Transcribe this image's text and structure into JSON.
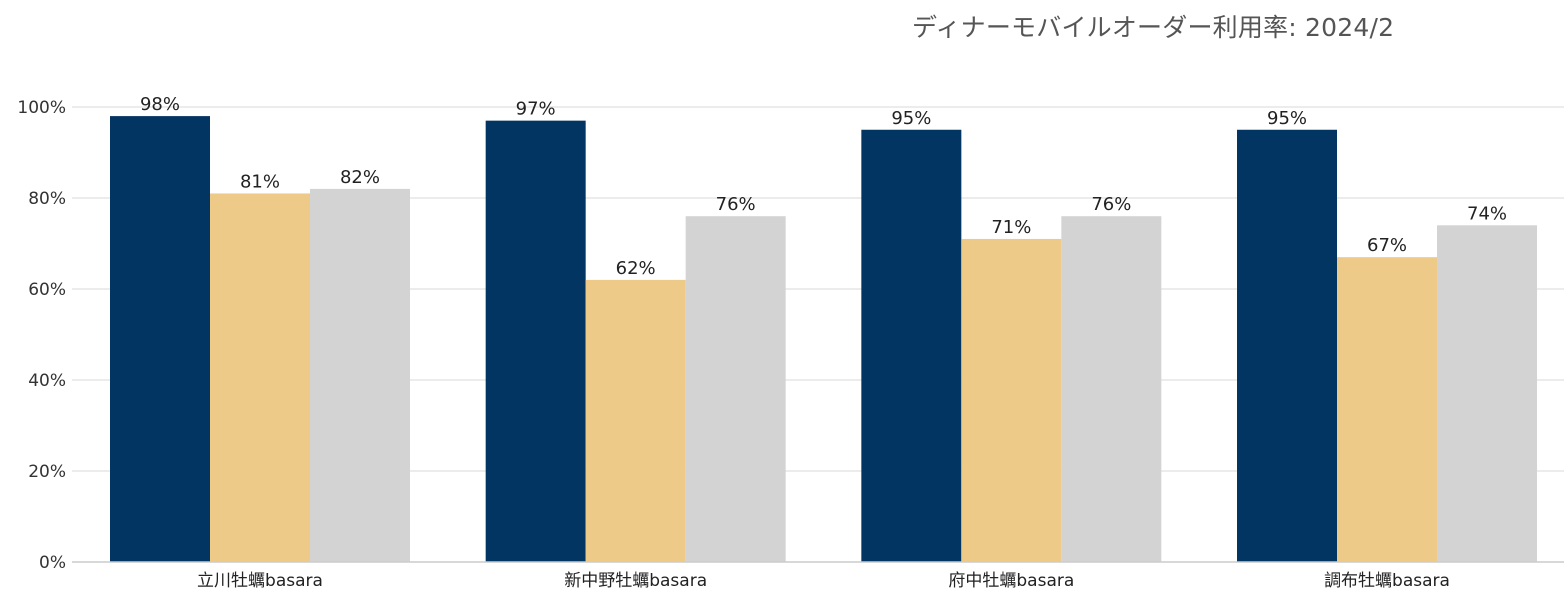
{
  "chart_data": {
    "type": "bar",
    "title": "ディナーモバイルオーダー利用率: 2024/2",
    "categories": [
      "立川牡蠣basara",
      "新中野牡蠣basara",
      "府中牡蠣basara",
      "調布牡蠣basara"
    ],
    "series": [
      {
        "color": "#033563",
        "values": [
          98,
          97,
          95,
          95
        ]
      },
      {
        "color": "#eeca88",
        "values": [
          81,
          62,
          71,
          67
        ]
      },
      {
        "color": "#d3d3d3",
        "values": [
          82,
          76,
          76,
          74
        ]
      }
    ],
    "data_labels": [
      [
        "98%",
        "97%",
        "95%",
        "95%"
      ],
      [
        "81%",
        "62%",
        "71%",
        "67%"
      ],
      [
        "82%",
        "76%",
        "76%",
        "74%"
      ]
    ],
    "yticks": [
      {
        "value": 0,
        "label": "0%"
      },
      {
        "value": 20,
        "label": "20%"
      },
      {
        "value": 40,
        "label": "40%"
      },
      {
        "value": 60,
        "label": "60%"
      },
      {
        "value": 80,
        "label": "80%"
      },
      {
        "value": 100,
        "label": "100%"
      }
    ],
    "ylim": [
      0,
      100
    ],
    "grid": true,
    "legend": "none"
  }
}
